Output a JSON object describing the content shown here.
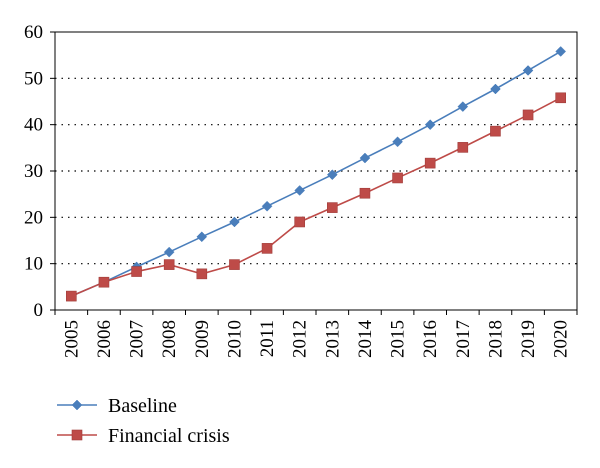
{
  "chart_data": {
    "type": "line",
    "title": "",
    "xlabel": "",
    "ylabel": "",
    "x": [
      "2005",
      "2006",
      "2007",
      "2008",
      "2009",
      "2010",
      "2011",
      "2012",
      "2013",
      "2014",
      "2015",
      "2016",
      "2017",
      "2018",
      "2019",
      "2020"
    ],
    "ylim": [
      0,
      60
    ],
    "yticks": [
      0,
      10,
      20,
      30,
      40,
      50,
      60
    ],
    "grid": "horizontal dotted",
    "legend_position": "bottom-left",
    "series": [
      {
        "name": "Baseline",
        "color": "#4a7ebb",
        "marker": "diamond",
        "values": [
          3.0,
          6.0,
          9.3,
          12.5,
          15.8,
          19.0,
          22.4,
          25.8,
          29.2,
          32.8,
          36.3,
          40.0,
          43.9,
          47.7,
          51.7,
          55.8
        ]
      },
      {
        "name": "Financial crisis",
        "color": "#be4b48",
        "marker": "square",
        "values": [
          3.0,
          6.0,
          8.3,
          9.8,
          7.8,
          9.8,
          13.3,
          19.0,
          22.1,
          25.2,
          28.5,
          31.7,
          35.1,
          38.6,
          42.1,
          45.8
        ]
      }
    ]
  }
}
